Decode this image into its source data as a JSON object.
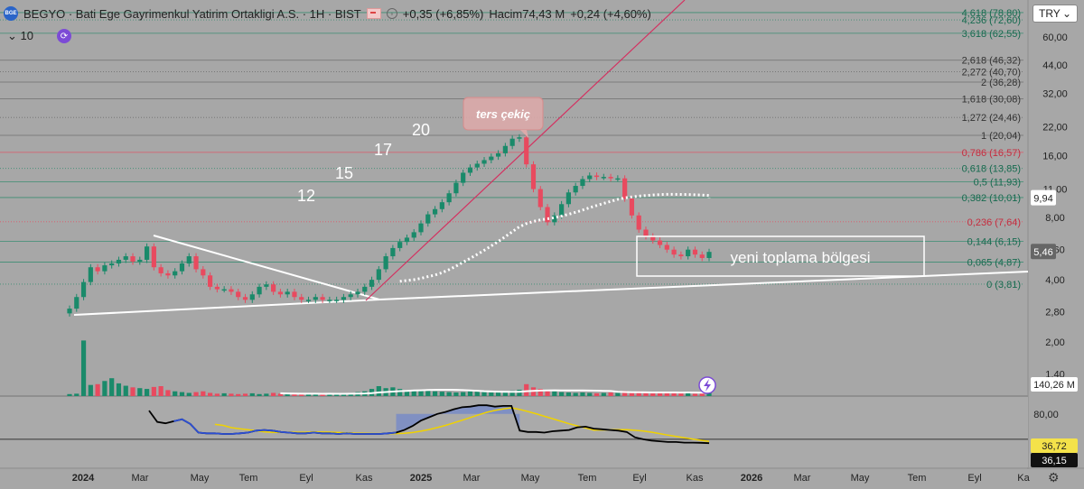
{
  "header": {
    "title": "BEGYO · Bati Ege Gayrimenkul Yatirim Ortakligi A.S. · 1H · BIST",
    "change": "+0,35 (+6,85%)",
    "volume_label": "Hacim",
    "volume_value": "74,43 M",
    "volume_change": "+0,24 (+4,60%)",
    "interval_value": "10",
    "currency": "TRY",
    "logo_text": "BGE"
  },
  "colors": {
    "up": "#1a8a6a",
    "down": "#e84a5f",
    "background": "#a7a7a7",
    "trendline": "#d43060",
    "fib_red": "#e84a5f",
    "indicator_line": "#000000",
    "indicator_blue": "#2d4fd4",
    "indicator_yellow": "#f0d200"
  },
  "chart_data": {
    "type": "candlestick",
    "y_scale": "log",
    "y_ticks": [
      "60,00",
      "44,00",
      "32,00",
      "22,00",
      "16,00",
      "11,00",
      "8,00",
      "5,60",
      "4,00",
      "2,80",
      "2,00",
      "1,40"
    ],
    "y_tick_values": [
      60,
      44,
      32,
      22,
      16,
      11,
      8,
      5.6,
      4,
      2.8,
      2,
      1.4
    ],
    "x_ticks": [
      "2024",
      "Mar",
      "May",
      "Tem",
      "Eyl",
      "Kas",
      "2025",
      "Mar",
      "May",
      "Tem",
      "Eyl",
      "Kas",
      "2026",
      "Mar",
      "May",
      "Tem",
      "Eyl",
      "Ka"
    ],
    "fibonacci": [
      {
        "label": "4,618 (78,80)",
        "value": 78.8
      },
      {
        "label": "4,236 (72,60)",
        "value": 72.6
      },
      {
        "label": "3,618 (62,55)",
        "value": 62.55
      },
      {
        "label": "2,618 (46,32)",
        "value": 46.32
      },
      {
        "label": "2,272 (40,70)",
        "value": 40.7
      },
      {
        "label": "2 (36,28)",
        "value": 36.28
      },
      {
        "label": "1,618 (30,08)",
        "value": 30.08
      },
      {
        "label": "1,272 (24,46)",
        "value": 24.46
      },
      {
        "label": "1 (20,04)",
        "value": 20.04
      },
      {
        "label": "0,786 (16,57)",
        "value": 16.57
      },
      {
        "label": "0,618 (13,85)",
        "value": 13.85
      },
      {
        "label": "0,5 (11,93)",
        "value": 11.93
      },
      {
        "label": "0,382 (10,01)",
        "value": 10.01
      },
      {
        "label": "0,236 (7,64)",
        "value": 7.64
      },
      {
        "label": "0,144 (6,15)",
        "value": 6.15
      },
      {
        "label": "0,065 (4,87)",
        "value": 4.87
      },
      {
        "label": "0 (3,81)",
        "value": 3.81
      }
    ],
    "price_labels": {
      "ma": "9,94",
      "last": "5,46",
      "volume": "140,26 M"
    },
    "indicator_ticks": [
      "80,00"
    ],
    "indicator_labels": {
      "a": "36,72",
      "b": "36,15"
    },
    "annotations": {
      "hammer": "ters çekiç",
      "zone": "yeni toplama bölgesi",
      "n12": "12",
      "n15": "15",
      "n17": "17",
      "n20": "20"
    },
    "closes": [
      2.9,
      3.3,
      3.9,
      4.6,
      4.4,
      4.7,
      4.8,
      5.0,
      5.2,
      4.9,
      5.0,
      5.8,
      4.6,
      4.3,
      4.2,
      4.4,
      4.8,
      5.2,
      4.5,
      4.2,
      3.7,
      3.6,
      3.6,
      3.5,
      3.3,
      3.2,
      3.4,
      3.7,
      3.8,
      3.5,
      3.4,
      3.5,
      3.3,
      3.2,
      3.2,
      3.3,
      3.2,
      3.2,
      3.2,
      3.3,
      3.4,
      3.5,
      3.7,
      4.0,
      4.5,
      5.2,
      5.7,
      6.1,
      6.4,
      6.8,
      7.5,
      8.3,
      8.8,
      9.5,
      10.5,
      11.8,
      13.2,
      14.0,
      14.6,
      15.2,
      15.8,
      16.4,
      17.8,
      19.3,
      19.6,
      14.5,
      11.0,
      9.0,
      7.6,
      8.2,
      9.3,
      10.6,
      11.4,
      12.3,
      12.8,
      12.6,
      12.6,
      12.4,
      12.4,
      9.9,
      8.2,
      7.0,
      6.5,
      6.2,
      5.9,
      5.6,
      5.3,
      5.2,
      5.6,
      5.3,
      5.1,
      5.46
    ],
    "volumes": [
      5,
      6,
      140,
      28,
      30,
      38,
      45,
      32,
      26,
      22,
      20,
      18,
      23,
      25,
      15,
      12,
      10,
      8,
      10,
      12,
      8,
      6,
      7,
      6,
      5,
      6,
      7,
      5,
      6,
      8,
      6,
      5,
      6,
      5,
      5,
      6,
      5,
      6,
      5,
      7,
      8,
      10,
      12,
      18,
      25,
      20,
      22,
      18,
      15,
      16,
      14,
      13,
      12,
      11,
      10,
      9,
      10,
      12,
      11,
      10,
      9,
      9,
      10,
      14,
      16,
      30,
      22,
      18,
      15,
      12,
      10,
      9,
      8,
      9,
      8,
      7,
      8,
      9,
      8,
      13,
      10,
      12,
      9,
      8,
      8,
      8,
      9,
      7,
      8,
      6,
      7,
      8
    ],
    "indicator": [
      85,
      68,
      66,
      69,
      72,
      65,
      52,
      51,
      51,
      50,
      50,
      51,
      52,
      55,
      56,
      55,
      53,
      52,
      51,
      51,
      52,
      51,
      51,
      50,
      51,
      50,
      50,
      50,
      50,
      51,
      52,
      56,
      62,
      70,
      75,
      80,
      83,
      87,
      90,
      91,
      93,
      93,
      91,
      92,
      92,
      55,
      53,
      53,
      52,
      54,
      55,
      56,
      60,
      61,
      58,
      57,
      56,
      55,
      53,
      45,
      42,
      40,
      39,
      38,
      38,
      37,
      37,
      36.7,
      36.15
    ]
  }
}
